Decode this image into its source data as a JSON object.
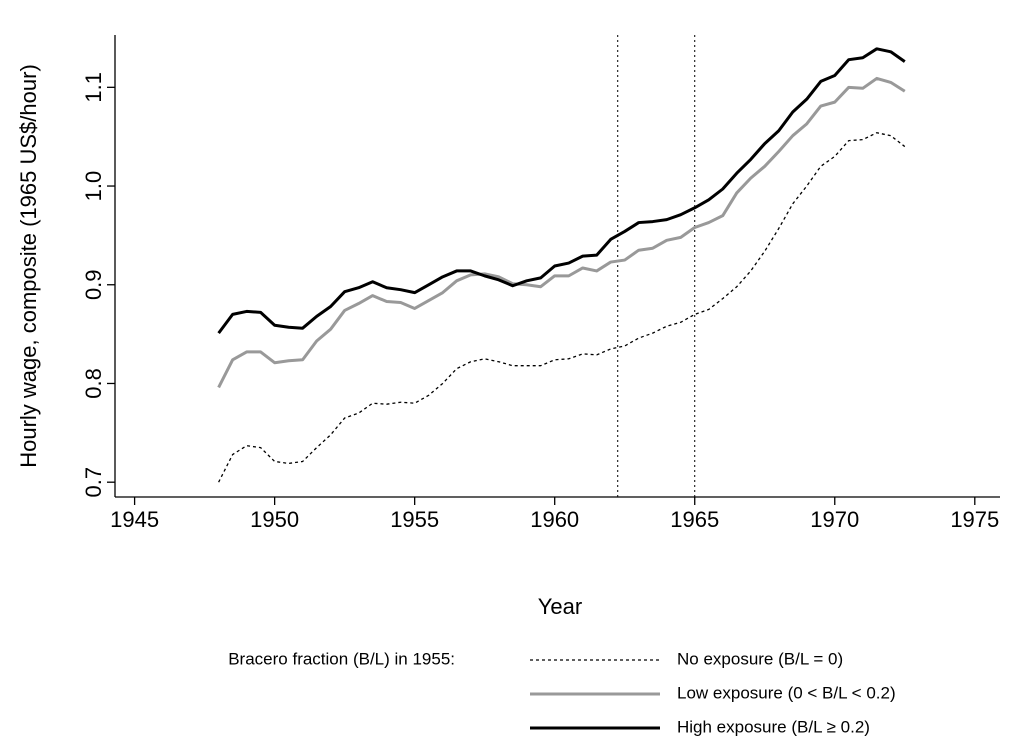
{
  "chart_data": {
    "type": "line",
    "xlabel": "Year",
    "ylabel": "Hourly wage, composite (1965 US$/hour)",
    "legend_title": "Bracero fraction (B/L) in 1955:",
    "x": [
      1948,
      1948.5,
      1949,
      1949.5,
      1950,
      1950.5,
      1951,
      1951.5,
      1952,
      1952.5,
      1953,
      1953.5,
      1954,
      1954.5,
      1955,
      1955.5,
      1956,
      1956.5,
      1957,
      1957.5,
      1958,
      1958.5,
      1959,
      1959.5,
      1960,
      1960.5,
      1961,
      1961.5,
      1962,
      1962.5,
      1963,
      1963.5,
      1964,
      1964.5,
      1965,
      1965.5,
      1966,
      1966.5,
      1967,
      1967.5,
      1968,
      1968.5,
      1969,
      1969.5,
      1970,
      1970.5,
      1971,
      1971.5,
      1972,
      1972.5
    ],
    "series": [
      {
        "name": "No exposure (B/L = 0)",
        "color": "#000000",
        "style": "dotted",
        "values": [
          0.7,
          0.728,
          0.737,
          0.735,
          0.721,
          0.719,
          0.721,
          0.735,
          0.748,
          0.765,
          0.77,
          0.78,
          0.779,
          0.781,
          0.78,
          0.788,
          0.8,
          0.815,
          0.822,
          0.825,
          0.822,
          0.818,
          0.818,
          0.818,
          0.824,
          0.825,
          0.83,
          0.829,
          0.835,
          0.838,
          0.846,
          0.851,
          0.858,
          0.862,
          0.87,
          0.875,
          0.886,
          0.898,
          0.914,
          0.934,
          0.957,
          0.982,
          1.0,
          1.02,
          1.03,
          1.046,
          1.047,
          1.054,
          1.051,
          1.04
        ]
      },
      {
        "name": "Low exposure (0 < B/L < 0.2)",
        "color": "#999999",
        "style": "solid",
        "values": [
          0.796,
          0.824,
          0.832,
          0.832,
          0.821,
          0.823,
          0.824,
          0.843,
          0.855,
          0.874,
          0.881,
          0.889,
          0.883,
          0.882,
          0.876,
          0.884,
          0.892,
          0.904,
          0.91,
          0.911,
          0.908,
          0.901,
          0.9,
          0.898,
          0.909,
          0.909,
          0.917,
          0.914,
          0.923,
          0.925,
          0.935,
          0.937,
          0.945,
          0.948,
          0.958,
          0.963,
          0.97,
          0.993,
          1.008,
          1.02,
          1.035,
          1.051,
          1.063,
          1.081,
          1.085,
          1.1,
          1.099,
          1.109,
          1.105,
          1.096
        ]
      },
      {
        "name": "High exposure (B/L ≥ 0.2)",
        "color": "#000000",
        "style": "solid",
        "values": [
          0.851,
          0.87,
          0.873,
          0.872,
          0.859,
          0.857,
          0.856,
          0.868,
          0.878,
          0.893,
          0.897,
          0.903,
          0.897,
          0.895,
          0.892,
          0.9,
          0.908,
          0.914,
          0.914,
          0.909,
          0.905,
          0.899,
          0.904,
          0.907,
          0.919,
          0.922,
          0.929,
          0.93,
          0.946,
          0.954,
          0.963,
          0.964,
          0.966,
          0.971,
          0.978,
          0.986,
          0.997,
          1.013,
          1.027,
          1.043,
          1.056,
          1.075,
          1.088,
          1.106,
          1.112,
          1.128,
          1.13,
          1.139,
          1.136,
          1.126
        ]
      }
    ],
    "vlines": [
      1962.25,
      1965
    ],
    "xlim": [
      1944.3,
      1975.9
    ],
    "xticks": [
      1945,
      1950,
      1955,
      1960,
      1965,
      1970,
      1975
    ],
    "ylim": [
      0.685,
      1.153
    ],
    "yticks": [
      0.7,
      0.8,
      0.9,
      {
        "value": 1,
        "label": "1.0"
      },
      1.1
    ],
    "grid": false,
    "legend": "bottom"
  }
}
